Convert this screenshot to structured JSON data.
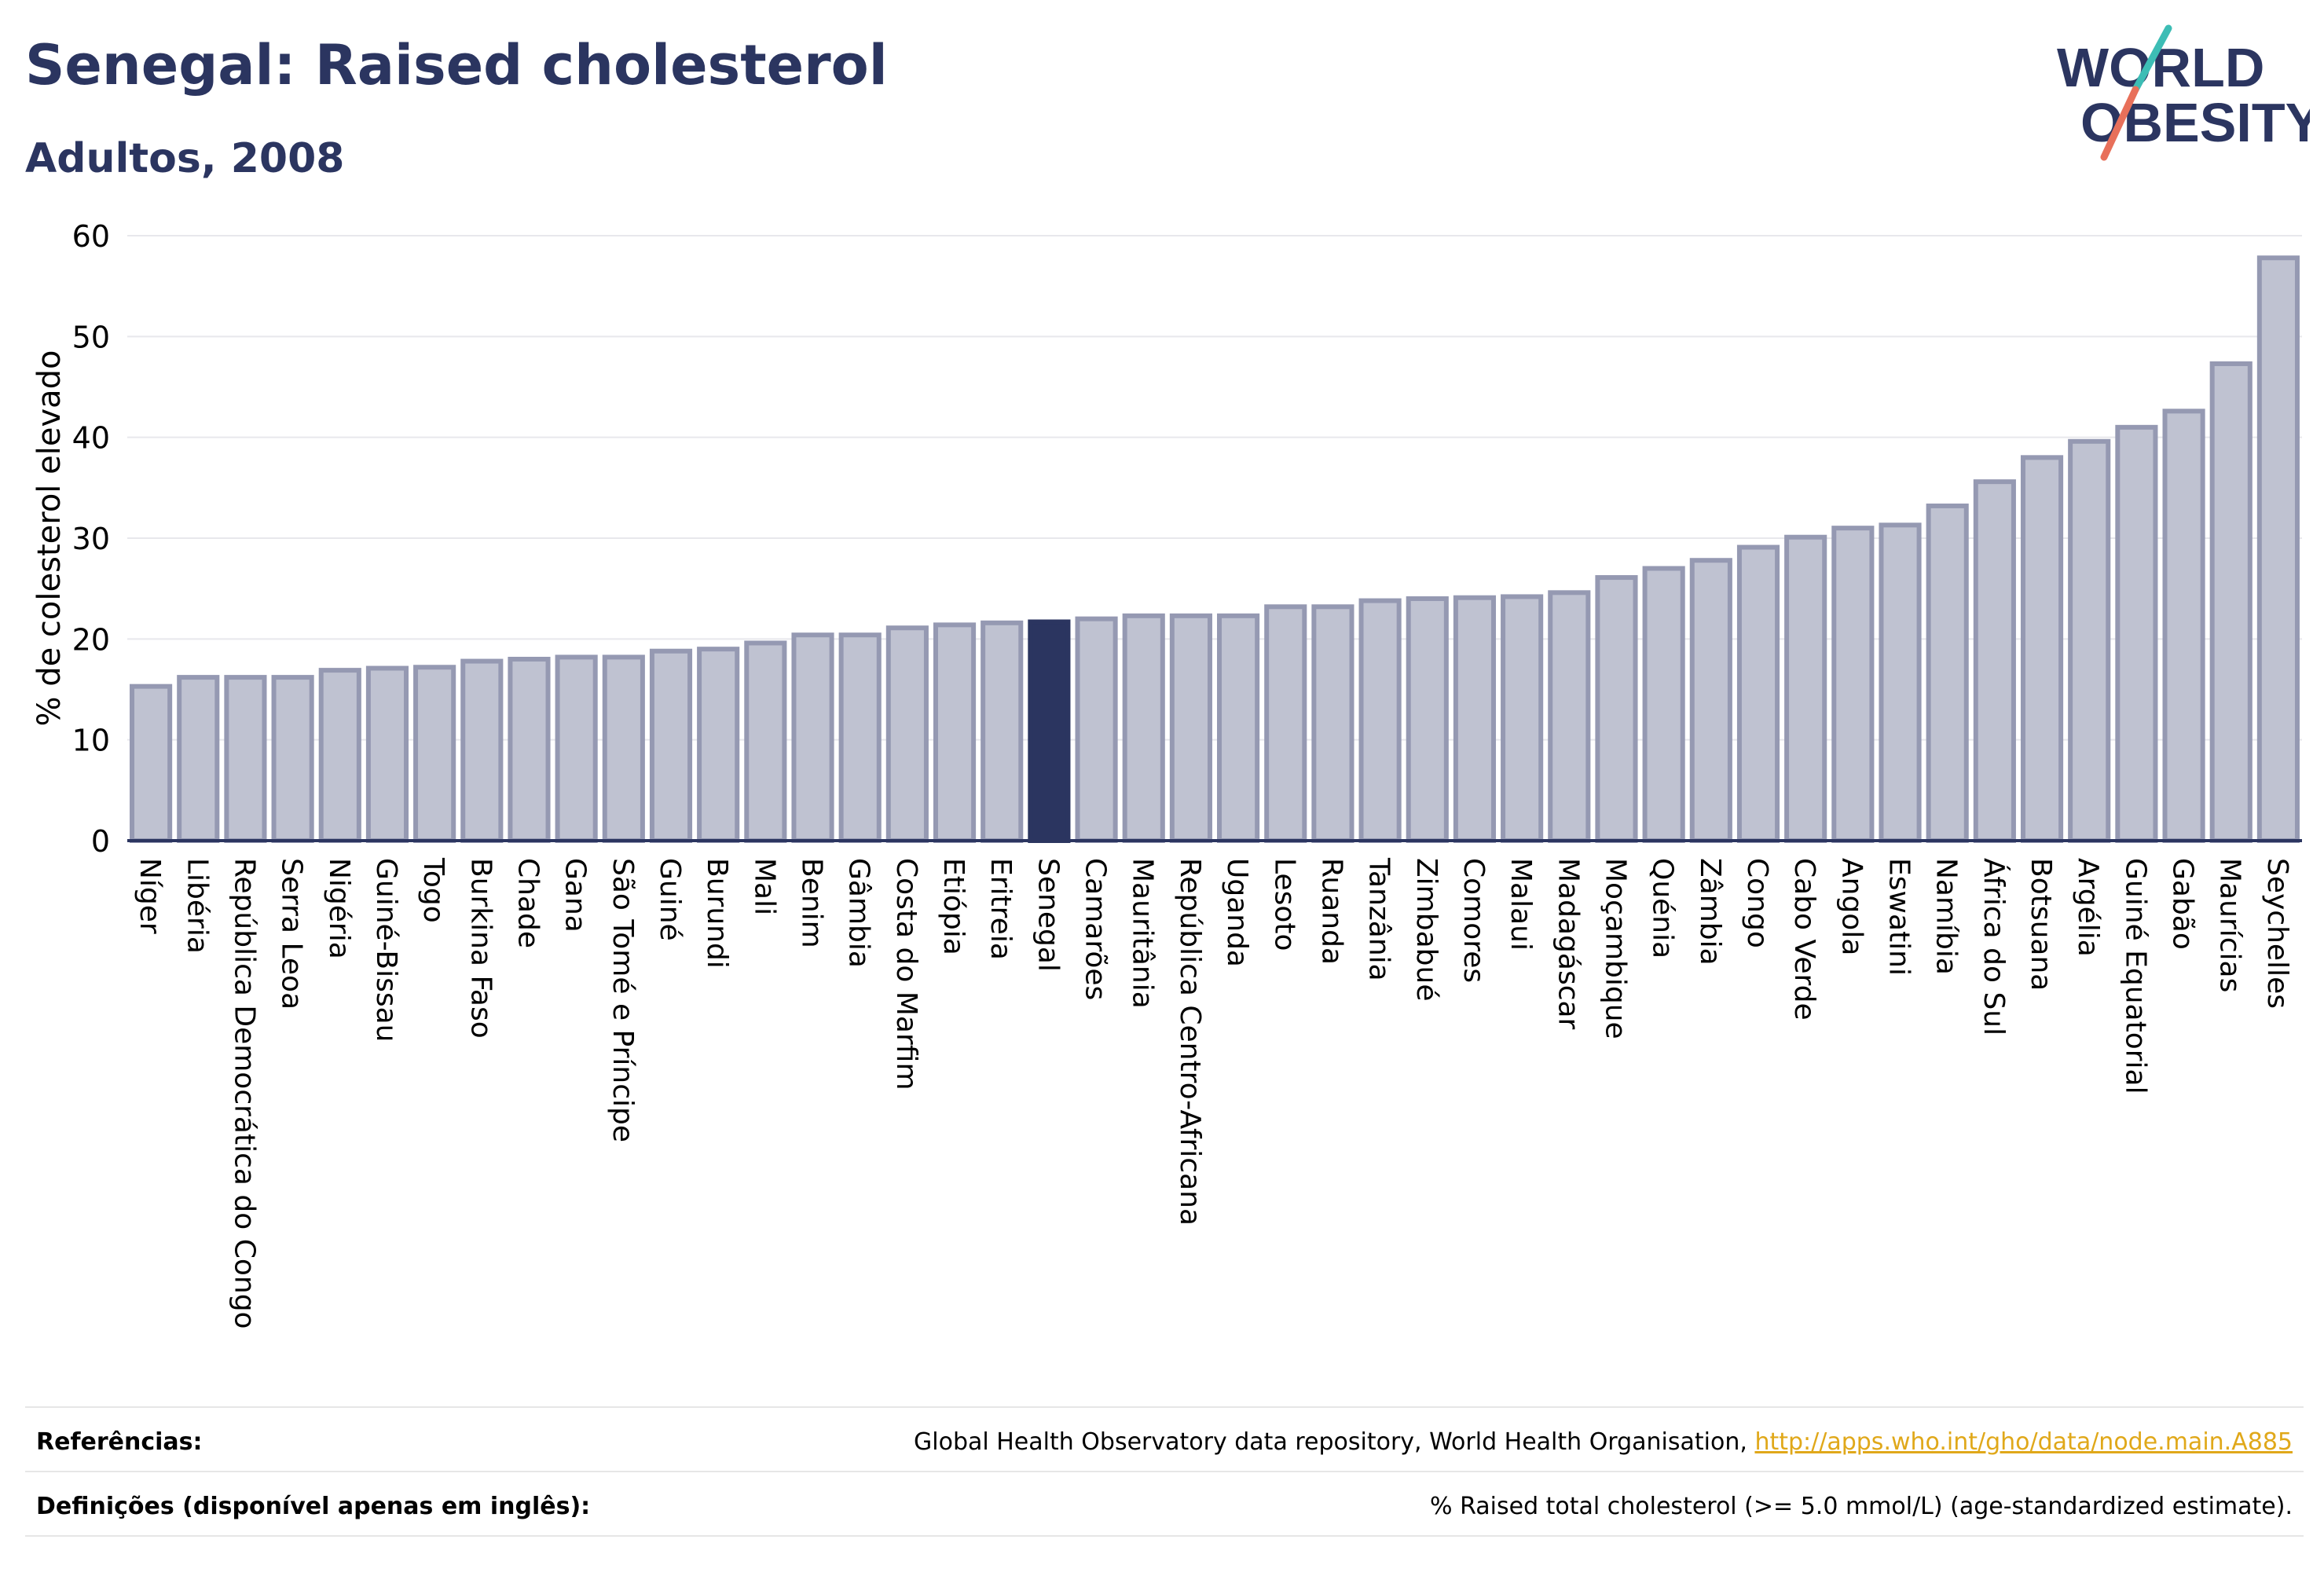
{
  "header": {
    "title": "Senegal: Raised cholesterol",
    "subtitle": "Adultos, 2008"
  },
  "logo": {
    "line1": "WORLD",
    "line2": "OBESITY",
    "colors": {
      "text": "#2b3560",
      "slash_teal": "#3dbdb5",
      "slash_coral": "#e8705a"
    }
  },
  "colors": {
    "bar_fill": "#bfc2d1",
    "bar_stroke": "#9599b2",
    "highlight": "#2b3560",
    "grid": "#e8e8ec",
    "text": "#2b3560"
  },
  "chart_data": {
    "type": "bar",
    "ylabel": "% de colesterol elevado",
    "xlabel": "",
    "ylim": [
      0,
      60
    ],
    "yticks": [
      0,
      10,
      20,
      30,
      40,
      50,
      60
    ],
    "grid": true,
    "highlight": "Senegal",
    "categories": [
      "Níger",
      "Libéria",
      "República Democrática do Congo",
      "Serra Leoa",
      "Nigéria",
      "Guiné-Bissau",
      "Togo",
      "Burkina Faso",
      "Chade",
      "Gana",
      "São Tomé e Príncipe",
      "Guiné",
      "Burundi",
      "Mali",
      "Benim",
      "Gâmbia",
      "Costa do Marfim",
      "Etiópia",
      "Eritreia",
      "Senegal",
      "Camarões",
      "Mauritânia",
      "República Centro-Africana",
      "Uganda",
      "Lesoto",
      "Ruanda",
      "Tanzânia",
      "Zimbabué",
      "Comores",
      "Malaui",
      "Madagáscar",
      "Moçambique",
      "Quénia",
      "Zâmbia",
      "Congo",
      "Cabo Verde",
      "Angola",
      "Eswatini",
      "Namíbia",
      "África do Sul",
      "Botsuana",
      "Argélia",
      "Guiné Equatorial",
      "Gabão",
      "Maurícias",
      "Seychelles"
    ],
    "values": [
      15.3,
      16.2,
      16.2,
      16.2,
      16.9,
      17.1,
      17.2,
      17.8,
      18.0,
      18.2,
      18.2,
      18.8,
      19.0,
      19.6,
      20.4,
      20.4,
      21.1,
      21.4,
      21.6,
      21.7,
      22.0,
      22.3,
      22.3,
      22.3,
      23.2,
      23.2,
      23.8,
      24.0,
      24.1,
      24.2,
      24.6,
      26.1,
      27.0,
      27.8,
      29.1,
      30.1,
      31.0,
      31.3,
      33.2,
      35.6,
      38.0,
      39.6,
      41.0,
      42.6,
      47.3,
      57.8
    ]
  },
  "footer": {
    "references_label": "Referências:",
    "references_text": "Global Health Observatory data repository, World Health Organisation, ",
    "references_link": "http://apps.who.int/gho/data/node.main.A885",
    "definitions_label": "Definições (disponível apenas em inglês):",
    "definitions_text": "% Raised total cholesterol (>= 5.0 mmol/L) (age-standardized estimate)."
  }
}
